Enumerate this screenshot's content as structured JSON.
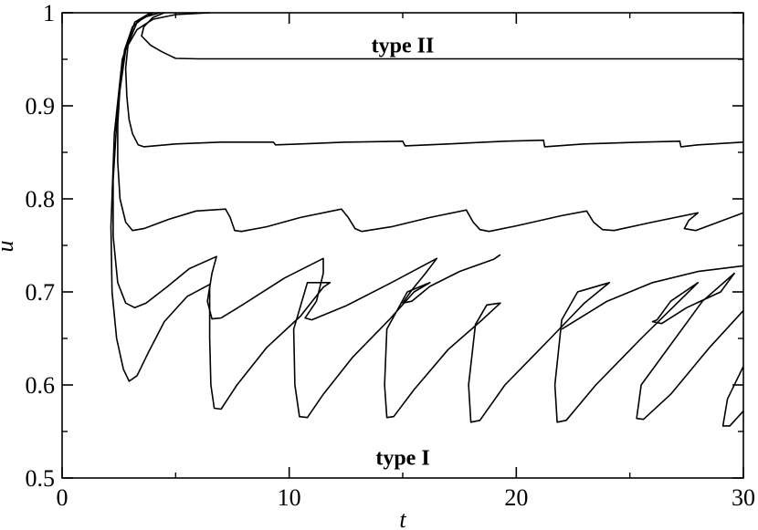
{
  "chart_data": {
    "type": "line",
    "title": "",
    "xlabel": "t",
    "ylabel": "u",
    "xlim": [
      0,
      30
    ],
    "ylim": [
      0.5,
      1.0
    ],
    "x_ticks": [
      0,
      10,
      20,
      30
    ],
    "x_tick_labels": [
      "0",
      "10",
      "20",
      "30"
    ],
    "y_ticks": [
      0.5,
      0.6,
      0.7,
      0.8,
      0.9,
      1.0
    ],
    "y_tick_labels": [
      "0.5",
      "0.6",
      "0.7",
      "0.8",
      "0.9",
      "1"
    ],
    "grid": false,
    "legend": "none",
    "annotations": [
      {
        "text": "type II",
        "x": 15.0,
        "y": 0.965
      },
      {
        "text": "type I",
        "x": 15.0,
        "y": 0.522
      }
    ],
    "series": [
      {
        "points": [
          [
            4.5,
            1.0
          ],
          [
            4.0,
            0.995
          ],
          [
            3.6,
            0.985
          ],
          [
            3.5,
            0.975
          ],
          [
            3.9,
            0.965
          ],
          [
            4.4,
            0.958
          ],
          [
            5.0,
            0.951
          ],
          [
            6.0,
            0.9505
          ],
          [
            8,
            0.9505
          ],
          [
            12,
            0.9505
          ],
          [
            16,
            0.9505
          ],
          [
            20,
            0.9505
          ],
          [
            24,
            0.9505
          ],
          [
            28,
            0.9505
          ],
          [
            30,
            0.9505
          ]
        ]
      },
      {
        "points": [
          [
            6.5,
            1.0
          ],
          [
            5.0,
            0.998
          ],
          [
            4.0,
            0.993
          ],
          [
            3.3,
            0.982
          ],
          [
            2.9,
            0.965
          ],
          [
            2.8,
            0.94
          ],
          [
            2.85,
            0.91
          ],
          [
            2.95,
            0.885
          ],
          [
            3.1,
            0.87
          ],
          [
            3.35,
            0.858
          ],
          [
            3.6,
            0.856
          ],
          [
            5.0,
            0.859
          ],
          [
            7.0,
            0.861
          ],
          [
            9.3,
            0.861
          ],
          [
            9.4,
            0.858
          ],
          [
            10.5,
            0.859
          ],
          [
            12.5,
            0.861
          ],
          [
            15.0,
            0.862
          ],
          [
            15.1,
            0.857
          ],
          [
            17.0,
            0.859
          ],
          [
            19.5,
            0.862
          ],
          [
            21.2,
            0.863
          ],
          [
            21.25,
            0.856
          ],
          [
            23.0,
            0.859
          ],
          [
            25.5,
            0.861
          ],
          [
            27.2,
            0.862
          ],
          [
            27.25,
            0.856
          ],
          [
            28.0,
            0.858
          ],
          [
            30.0,
            0.861
          ]
        ]
      },
      {
        "points": [
          [
            4.3,
            1.0
          ],
          [
            3.6,
            0.995
          ],
          [
            3.1,
            0.985
          ],
          [
            2.75,
            0.96
          ],
          [
            2.55,
            0.92
          ],
          [
            2.45,
            0.88
          ],
          [
            2.45,
            0.84
          ],
          [
            2.55,
            0.8
          ],
          [
            2.8,
            0.775
          ],
          [
            3.1,
            0.766
          ],
          [
            3.6,
            0.768
          ],
          [
            4.7,
            0.778
          ],
          [
            5.9,
            0.787
          ],
          [
            7.2,
            0.789
          ],
          [
            7.4,
            0.78
          ],
          [
            7.6,
            0.766
          ],
          [
            7.9,
            0.765
          ],
          [
            9.0,
            0.77
          ],
          [
            10.5,
            0.78
          ],
          [
            12.3,
            0.789
          ],
          [
            12.6,
            0.78
          ],
          [
            12.9,
            0.768
          ],
          [
            13.2,
            0.765
          ],
          [
            14.5,
            0.77
          ],
          [
            16.2,
            0.78
          ],
          [
            17.8,
            0.788
          ],
          [
            18.1,
            0.775
          ],
          [
            18.4,
            0.767
          ],
          [
            18.8,
            0.765
          ],
          [
            20.0,
            0.771
          ],
          [
            22.0,
            0.782
          ],
          [
            23.1,
            0.787
          ],
          [
            23.4,
            0.775
          ],
          [
            23.8,
            0.767
          ],
          [
            24.3,
            0.766
          ],
          [
            26.0,
            0.775
          ],
          [
            28.0,
            0.785
          ],
          [
            27.6,
            0.777
          ],
          [
            27.4,
            0.768
          ],
          [
            27.9,
            0.766
          ],
          [
            30.0,
            0.785
          ]
        ]
      },
      {
        "points": [
          [
            4.0,
            1.0
          ],
          [
            3.3,
            0.99
          ],
          [
            2.8,
            0.96
          ],
          [
            2.45,
            0.9
          ],
          [
            2.25,
            0.82
          ],
          [
            2.25,
            0.76
          ],
          [
            2.45,
            0.71
          ],
          [
            2.8,
            0.688
          ],
          [
            3.2,
            0.683
          ],
          [
            3.7,
            0.688
          ],
          [
            4.6,
            0.705
          ],
          [
            5.6,
            0.725
          ],
          [
            6.8,
            0.738
          ],
          [
            6.6,
            0.72
          ],
          [
            6.4,
            0.69
          ],
          [
            6.6,
            0.671
          ],
          [
            7.0,
            0.672
          ],
          [
            8.0,
            0.687
          ],
          [
            9.8,
            0.715
          ],
          [
            11.5,
            0.736
          ],
          [
            11.5,
            0.72
          ],
          [
            11.2,
            0.69
          ],
          [
            10.7,
            0.672
          ],
          [
            11.0,
            0.67
          ],
          [
            12.5,
            0.685
          ],
          [
            14.5,
            0.71
          ],
          [
            16.5,
            0.736
          ],
          [
            16.0,
            0.72
          ],
          [
            15.4,
            0.702
          ],
          [
            15.0,
            0.688
          ],
          [
            15.4,
            0.69
          ],
          [
            16.2,
            0.706
          ],
          [
            17.5,
            0.722
          ],
          [
            19.0,
            0.735
          ],
          [
            19.3,
            0.74
          ]
        ]
      },
      {
        "points": [
          [
            3.9,
            1.0
          ],
          [
            3.2,
            0.99
          ],
          [
            2.65,
            0.95
          ],
          [
            2.3,
            0.87
          ],
          [
            2.15,
            0.77
          ],
          [
            2.2,
            0.7
          ],
          [
            2.4,
            0.65
          ],
          [
            2.7,
            0.617
          ],
          [
            2.95,
            0.604
          ],
          [
            3.3,
            0.61
          ],
          [
            3.8,
            0.635
          ],
          [
            4.5,
            0.668
          ],
          [
            5.5,
            0.695
          ],
          [
            6.5,
            0.708
          ],
          [
            6.5,
            0.65
          ],
          [
            6.55,
            0.6
          ],
          [
            6.7,
            0.575
          ],
          [
            7.0,
            0.574
          ],
          [
            7.7,
            0.6
          ],
          [
            9.0,
            0.64
          ],
          [
            10.5,
            0.674
          ],
          [
            11.5,
            0.705
          ],
          [
            11.8,
            0.71
          ],
          [
            10.8,
            0.71
          ],
          [
            10.2,
            0.66
          ],
          [
            10.25,
            0.6
          ],
          [
            10.45,
            0.566
          ],
          [
            10.8,
            0.565
          ],
          [
            11.5,
            0.59
          ],
          [
            12.8,
            0.63
          ],
          [
            14.4,
            0.67
          ],
          [
            15.5,
            0.7
          ],
          [
            16.2,
            0.71
          ],
          [
            15.2,
            0.7
          ],
          [
            14.3,
            0.66
          ],
          [
            14.2,
            0.6
          ],
          [
            14.3,
            0.565
          ],
          [
            14.6,
            0.566
          ],
          [
            15.5,
            0.595
          ],
          [
            17.0,
            0.638
          ],
          [
            18.5,
            0.67
          ],
          [
            19.3,
            0.688
          ],
          [
            18.7,
            0.686
          ],
          [
            18.2,
            0.665
          ],
          [
            17.9,
            0.6
          ],
          [
            18.0,
            0.56
          ],
          [
            18.4,
            0.562
          ],
          [
            19.5,
            0.6
          ],
          [
            21.5,
            0.65
          ],
          [
            23.0,
            0.688
          ],
          [
            24.1,
            0.71
          ],
          [
            22.7,
            0.7
          ],
          [
            22.0,
            0.67
          ],
          [
            21.7,
            0.6
          ],
          [
            21.8,
            0.56
          ],
          [
            22.2,
            0.562
          ],
          [
            23.5,
            0.6
          ],
          [
            25.5,
            0.65
          ],
          [
            27.0,
            0.686
          ],
          [
            28.0,
            0.71
          ],
          [
            26.8,
            0.69
          ],
          [
            26.2,
            0.67
          ],
          [
            26.0,
            0.668
          ],
          [
            26.4,
            0.666
          ],
          [
            27.5,
            0.683
          ],
          [
            29.0,
            0.7
          ],
          [
            29.6,
            0.72
          ],
          [
            28.2,
            0.69
          ],
          [
            25.5,
            0.6
          ],
          [
            25.3,
            0.564
          ],
          [
            25.6,
            0.563
          ],
          [
            26.8,
            0.59
          ],
          [
            28.5,
            0.64
          ],
          [
            30.0,
            0.68
          ]
        ]
      },
      {
        "points": [
          [
            22.0,
            0.66
          ],
          [
            24.0,
            0.69
          ],
          [
            26.0,
            0.71
          ],
          [
            28.0,
            0.722
          ],
          [
            30.0,
            0.728
          ]
        ]
      },
      {
        "points": [
          [
            30.0,
            0.62
          ],
          [
            29.3,
            0.585
          ],
          [
            29.1,
            0.556
          ],
          [
            29.4,
            0.556
          ],
          [
            30.0,
            0.572
          ]
        ]
      }
    ]
  }
}
